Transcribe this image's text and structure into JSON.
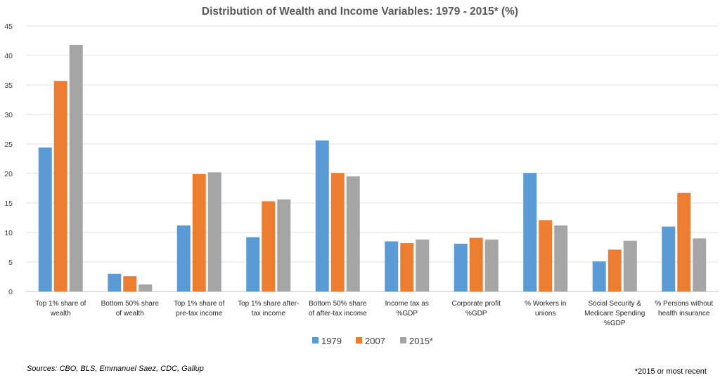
{
  "chart_data": {
    "type": "bar",
    "title": "Distribution of Wealth and Income Variables:  1979 - 2015* (%)",
    "xlabel": "",
    "ylabel": "",
    "ylim": [
      0,
      45
    ],
    "yticks": [
      0,
      5,
      10,
      15,
      20,
      25,
      30,
      35,
      40,
      45
    ],
    "grid": true,
    "legend_position": "bottom",
    "categories": [
      [
        "Top 1% share of",
        "wealth"
      ],
      [
        "Bottom 50% share",
        "of wealth"
      ],
      [
        "Top 1% share of",
        "pre-tax income"
      ],
      [
        "Top 1% share after-",
        "tax income"
      ],
      [
        "Bottom 50% share",
        "of after-tax income"
      ],
      [
        "Income tax as",
        "%GDP"
      ],
      [
        "Corporate profit",
        "%GDP"
      ],
      [
        "% Workers in",
        "unions"
      ],
      [
        "Social Security &",
        "Medicare Spending",
        "%GDP"
      ],
      [
        "% Persons without",
        "health insurance"
      ]
    ],
    "series": [
      {
        "name": "1979",
        "color": "#5b9bd5",
        "values": [
          24.4,
          3.0,
          11.2,
          9.2,
          25.6,
          8.5,
          8.1,
          20.1,
          5.1,
          11.0
        ]
      },
      {
        "name": "2007",
        "color": "#ed7d31",
        "values": [
          35.7,
          2.6,
          19.9,
          15.3,
          20.1,
          8.2,
          9.1,
          12.1,
          7.1,
          16.7
        ]
      },
      {
        "name": "2015*",
        "color": "#a5a5a5",
        "values": [
          41.8,
          1.2,
          20.2,
          15.6,
          19.5,
          8.8,
          8.8,
          11.2,
          8.6,
          9.0
        ]
      }
    ]
  },
  "footer": {
    "sources": "Sources:  CBO,  BLS, Emmanuel Saez, CDC, Gallup",
    "note": "*2015 or most recent"
  }
}
